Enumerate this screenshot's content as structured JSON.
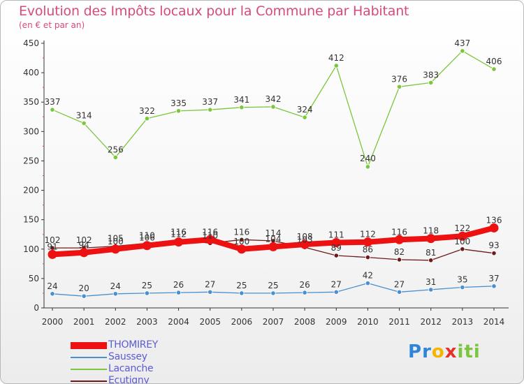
{
  "header": {
    "title": "Evolution des Impôts locaux pour la Commune par Habitant",
    "subtitle": "(en € et par an)"
  },
  "chart_data": {
    "type": "line",
    "title": "Evolution des Impôts locaux pour la Commune par Habitant",
    "ylabel": "(en € et par an)",
    "xlabel": "",
    "ylim": [
      0,
      450
    ],
    "yticks": [
      0,
      50,
      100,
      150,
      200,
      250,
      300,
      350,
      400,
      450
    ],
    "grid": false,
    "legend_position": "bottom-left",
    "categories": [
      "2000",
      "2001",
      "2002",
      "2003",
      "2004",
      "2005",
      "2006",
      "2007",
      "2008",
      "2009",
      "2010",
      "2011",
      "2012",
      "2013",
      "2014"
    ],
    "series": [
      {
        "name": "Lacanche",
        "color": "#7cc63e",
        "values": [
          337,
          314,
          256,
          322,
          335,
          337,
          341,
          342,
          324,
          412,
          240,
          376,
          383,
          437,
          406
        ]
      },
      {
        "name": "Ecutigny",
        "color": "#6e1a1a",
        "values": [
          102,
          102,
          105,
          110,
          116,
          110,
          116,
          114,
          103,
          89,
          86,
          82,
          81,
          100,
          93
        ]
      },
      {
        "name": "Saussey",
        "color": "#4a8fd0",
        "values": [
          24,
          20,
          24,
          25,
          26,
          27,
          25,
          25,
          26,
          27,
          42,
          27,
          31,
          35,
          37
        ]
      },
      {
        "name": "THOMIREY",
        "color": "#ee1111",
        "values": [
          91,
          94,
          100,
          106,
          112,
          116,
          100,
          104,
          108,
          111,
          112,
          116,
          118,
          122,
          136
        ]
      }
    ],
    "legend_order": [
      "THOMIREY",
      "Saussey",
      "Lacanche",
      "Ecutigny"
    ]
  },
  "legend": {
    "items": [
      {
        "label": "THOMIREY",
        "color": "#ee1111",
        "swatch": "thick"
      },
      {
        "label": "Saussey",
        "color": "#4a8fd0",
        "swatch": "thin"
      },
      {
        "label": "Lacanche",
        "color": "#7cc63e",
        "swatch": "thin"
      },
      {
        "label": "Ecutigny",
        "color": "#6e1a1a",
        "swatch": "thin"
      }
    ]
  },
  "logo": {
    "letters": [
      {
        "ch": "P",
        "color": "#2f86d8"
      },
      {
        "ch": "r",
        "color": "#2f86d8"
      },
      {
        "ch": "o",
        "color": "#f4b400"
      },
      {
        "ch": "x",
        "color": "#e4322b"
      },
      {
        "ch": "i",
        "color": "#7cc63e"
      },
      {
        "ch": "t",
        "color": "#7cc63e"
      },
      {
        "ch": "i",
        "color": "#7cc63e"
      }
    ]
  }
}
